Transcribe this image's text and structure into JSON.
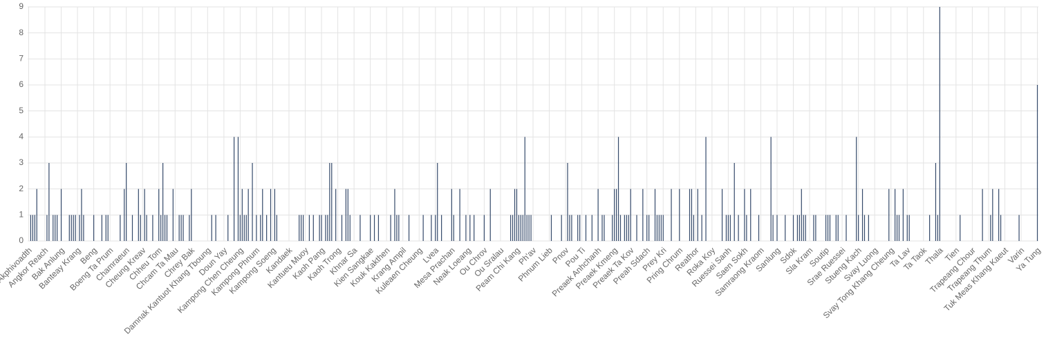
{
  "chart_data": {
    "type": "bar",
    "color": "#34496a",
    "grid": true,
    "ylim": [
      0,
      9
    ],
    "yticks": [
      0,
      1,
      2,
      3,
      4,
      5,
      6,
      7,
      8,
      9
    ],
    "categories": [
      "Akphivoadth",
      null,
      null,
      null,
      null,
      null,
      null,
      null,
      "Angkor Reach",
      null,
      null,
      null,
      null,
      null,
      null,
      null,
      "Bak Anlung",
      null,
      null,
      null,
      null,
      null,
      null,
      null,
      "Banteay Krang",
      null,
      null,
      null,
      null,
      null,
      null,
      null,
      "Beng",
      null,
      null,
      null,
      null,
      null,
      null,
      null,
      "Boeng Ta Prum",
      null,
      null,
      null,
      null,
      null,
      null,
      null,
      "Chamraeun",
      null,
      null,
      null,
      null,
      null,
      null,
      null,
      "Cheung Kreav",
      null,
      null,
      null,
      null,
      null,
      null,
      null,
      "Chheu Tom",
      null,
      null,
      null,
      null,
      null,
      null,
      null,
      "Chcam Ta Mau",
      null,
      null,
      null,
      null,
      null,
      null,
      null,
      "Chrey Bak",
      null,
      null,
      null,
      null,
      null,
      null,
      null,
      "Damnak Kantuot Khang Tboung",
      null,
      null,
      null,
      null,
      null,
      null,
      null,
      "Doun Yay",
      null,
      null,
      null,
      null,
      null,
      null,
      null,
      "Kampong Chen Cheung",
      null,
      null,
      null,
      null,
      null,
      null,
      null,
      "Kampong Phnum",
      null,
      null,
      null,
      null,
      null,
      null,
      null,
      "Kampong Soeng",
      null,
      null,
      null,
      null,
      null,
      null,
      null,
      "Kandaek",
      null,
      null,
      null,
      null,
      null,
      null,
      null,
      "Kantueu Muoy",
      null,
      null,
      null,
      null,
      null,
      null,
      null,
      "Kaoh Pang",
      null,
      null,
      null,
      null,
      null,
      null,
      null,
      "Kaoh Trong",
      null,
      null,
      null,
      null,
      null,
      null,
      null,
      "Khnar Sa",
      null,
      null,
      null,
      null,
      null,
      null,
      null,
      "Kien Sangkae",
      null,
      null,
      null,
      null,
      null,
      null,
      null,
      "Kouk Kakthen",
      null,
      null,
      null,
      null,
      null,
      null,
      null,
      "Krang Ampil",
      null,
      null,
      null,
      null,
      null,
      null,
      null,
      "Kuleaen Cheung",
      null,
      null,
      null,
      null,
      null,
      null,
      null,
      "Lvea",
      null,
      null,
      null,
      null,
      null,
      null,
      null,
      "Mesa Prachan",
      null,
      null,
      null,
      null,
      null,
      null,
      null,
      "Neak Loeang",
      null,
      null,
      null,
      null,
      null,
      null,
      null,
      "Ou Chrov",
      null,
      null,
      null,
      null,
      null,
      null,
      null,
      "Ou Sralau",
      null,
      null,
      null,
      null,
      null,
      null,
      null,
      "Peam Chi Kang",
      null,
      null,
      null,
      null,
      null,
      null,
      null,
      "Ph'av",
      null,
      null,
      null,
      null,
      null,
      null,
      null,
      "Phnum Lieb",
      null,
      null,
      null,
      null,
      null,
      null,
      null,
      "Pnov",
      null,
      null,
      null,
      null,
      null,
      null,
      null,
      "Pou Ti",
      null,
      null,
      null,
      null,
      null,
      null,
      null,
      "Preaek Anhchanh",
      null,
      null,
      null,
      null,
      null,
      null,
      null,
      "Preaek Kmeng",
      null,
      null,
      null,
      null,
      null,
      null,
      null,
      "Preaek Ta Kov",
      null,
      null,
      null,
      null,
      null,
      null,
      null,
      "Preah Sdach",
      null,
      null,
      null,
      null,
      null,
      null,
      null,
      "Prey Kri",
      null,
      null,
      null,
      null,
      null,
      null,
      null,
      "Pring Chrum",
      null,
      null,
      null,
      null,
      null,
      null,
      null,
      "Reathor",
      null,
      null,
      null,
      null,
      null,
      null,
      null,
      "Roka Koy",
      null,
      null,
      null,
      null,
      null,
      null,
      null,
      "Ruessei Sanh",
      null,
      null,
      null,
      null,
      null,
      null,
      null,
      "Saen Sokh",
      null,
      null,
      null,
      null,
      null,
      null,
      null,
      "Samraong Kraom",
      null,
      null,
      null,
      null,
      null,
      null,
      null,
      "Sanlung",
      null,
      null,
      null,
      null,
      null,
      null,
      null,
      "Sdok",
      null,
      null,
      null,
      null,
      null,
      null,
      null,
      "Sla Kram",
      null,
      null,
      null,
      null,
      null,
      null,
      null,
      "Soutip",
      null,
      null,
      null,
      null,
      null,
      null,
      null,
      "Srae Ruessei",
      null,
      null,
      null,
      null,
      null,
      null,
      null,
      "Stueng Kach",
      null,
      null,
      null,
      null,
      null,
      null,
      null,
      "Svay Luong",
      null,
      null,
      null,
      null,
      null,
      null,
      null,
      "Svay Tong Khang Cheung",
      null,
      null,
      null,
      null,
      null,
      null,
      null,
      "Ta Lav",
      null,
      null,
      null,
      null,
      null,
      null,
      null,
      "Ta Taok",
      null,
      null,
      null,
      null,
      null,
      null,
      null,
      "Thala",
      null,
      null,
      null,
      null,
      null,
      null,
      null,
      "Tien",
      null,
      null,
      null,
      null,
      null,
      null,
      null,
      "Trapeang Chour",
      null,
      null,
      null,
      null,
      null,
      null,
      null,
      "Trapeang Thum",
      null,
      null,
      null,
      null,
      null,
      null,
      null,
      "Tuk Meas Khang Kaeut",
      null,
      null,
      null,
      null,
      null,
      null,
      null,
      "Varin",
      null,
      null,
      null,
      null,
      null,
      null,
      null,
      "Ya Tung"
    ],
    "values": [
      0,
      1,
      1,
      1,
      2,
      0,
      0,
      0,
      0,
      1,
      3,
      0,
      1,
      1,
      1,
      0,
      2,
      0,
      0,
      0,
      1,
      1,
      1,
      1,
      0,
      1,
      2,
      1,
      0,
      0,
      0,
      0,
      1,
      0,
      0,
      0,
      1,
      0,
      1,
      1,
      0,
      0,
      0,
      0,
      0,
      1,
      0,
      2,
      3,
      0,
      0,
      1,
      0,
      0,
      2,
      1,
      0,
      2,
      1,
      0,
      0,
      1,
      0,
      0,
      2,
      1,
      3,
      1,
      1,
      0,
      0,
      2,
      0,
      0,
      1,
      1,
      1,
      0,
      0,
      1,
      2,
      0,
      0,
      0,
      0,
      0,
      0,
      0,
      0,
      0,
      1,
      0,
      1,
      0,
      0,
      0,
      0,
      0,
      1,
      0,
      0,
      4,
      0,
      4,
      1,
      2,
      1,
      1,
      2,
      0,
      3,
      0,
      1,
      0,
      1,
      2,
      0,
      1,
      0,
      2,
      0,
      2,
      1,
      0,
      0,
      0,
      0,
      0,
      0,
      0,
      0,
      0,
      0,
      1,
      1,
      1,
      0,
      0,
      1,
      0,
      1,
      0,
      0,
      1,
      1,
      0,
      1,
      1,
      3,
      3,
      0,
      2,
      0,
      0,
      1,
      0,
      2,
      2,
      1,
      0,
      0,
      0,
      0,
      1,
      0,
      0,
      0,
      0,
      1,
      0,
      1,
      0,
      1,
      0,
      0,
      0,
      0,
      0,
      1,
      0,
      2,
      1,
      1,
      0,
      0,
      0,
      0,
      1,
      0,
      0,
      0,
      0,
      0,
      0,
      1,
      0,
      0,
      0,
      1,
      0,
      1,
      3,
      0,
      1,
      0,
      0,
      0,
      0,
      2,
      1,
      0,
      0,
      2,
      0,
      0,
      1,
      0,
      1,
      0,
      1,
      0,
      0,
      0,
      0,
      1,
      0,
      0,
      2,
      0,
      0,
      0,
      0,
      0,
      0,
      0,
      0,
      0,
      1,
      1,
      2,
      2,
      1,
      1,
      1,
      4,
      1,
      1,
      1,
      0,
      0,
      0,
      0,
      0,
      0,
      0,
      0,
      0,
      1,
      0,
      0,
      0,
      0,
      1,
      0,
      0,
      3,
      1,
      1,
      0,
      0,
      1,
      1,
      0,
      0,
      1,
      0,
      0,
      1,
      0,
      0,
      2,
      0,
      1,
      1,
      0,
      0,
      0,
      1,
      2,
      2,
      4,
      1,
      0,
      1,
      1,
      1,
      2,
      0,
      0,
      1,
      0,
      0,
      2,
      0,
      1,
      1,
      0,
      0,
      2,
      1,
      1,
      1,
      1,
      0,
      0,
      0,
      2,
      0,
      0,
      0,
      2,
      0,
      0,
      0,
      0,
      2,
      2,
      1,
      0,
      2,
      0,
      1,
      0,
      4,
      0,
      0,
      0,
      0,
      0,
      0,
      0,
      2,
      0,
      1,
      1,
      1,
      0,
      3,
      0,
      1,
      0,
      0,
      2,
      1,
      0,
      2,
      0,
      0,
      0,
      1,
      0,
      0,
      0,
      0,
      0,
      4,
      1,
      0,
      1,
      0,
      0,
      0,
      1,
      0,
      0,
      0,
      1,
      0,
      1,
      1,
      2,
      1,
      1,
      0,
      0,
      0,
      1,
      1,
      0,
      0,
      0,
      0,
      1,
      1,
      1,
      0,
      0,
      1,
      1,
      0,
      0,
      0,
      1,
      0,
      0,
      0,
      0,
      4,
      1,
      0,
      2,
      1,
      0,
      1,
      0,
      0,
      0,
      0,
      0,
      0,
      0,
      0,
      0,
      2,
      0,
      0,
      2,
      1,
      1,
      0,
      2,
      0,
      1,
      1,
      0,
      0,
      0,
      0,
      0,
      0,
      0,
      0,
      0,
      1,
      0,
      0,
      3,
      1,
      9,
      0,
      0,
      0,
      0,
      0,
      0,
      0,
      0,
      0,
      1,
      0,
      0,
      0,
      0,
      0,
      0,
      0,
      0,
      0,
      0,
      2,
      0,
      0,
      0,
      1,
      2,
      0,
      0,
      2,
      1,
      0,
      0,
      0,
      0,
      0,
      0,
      0,
      0,
      1,
      0,
      0,
      0,
      0,
      0,
      0,
      0,
      0,
      6
    ]
  }
}
